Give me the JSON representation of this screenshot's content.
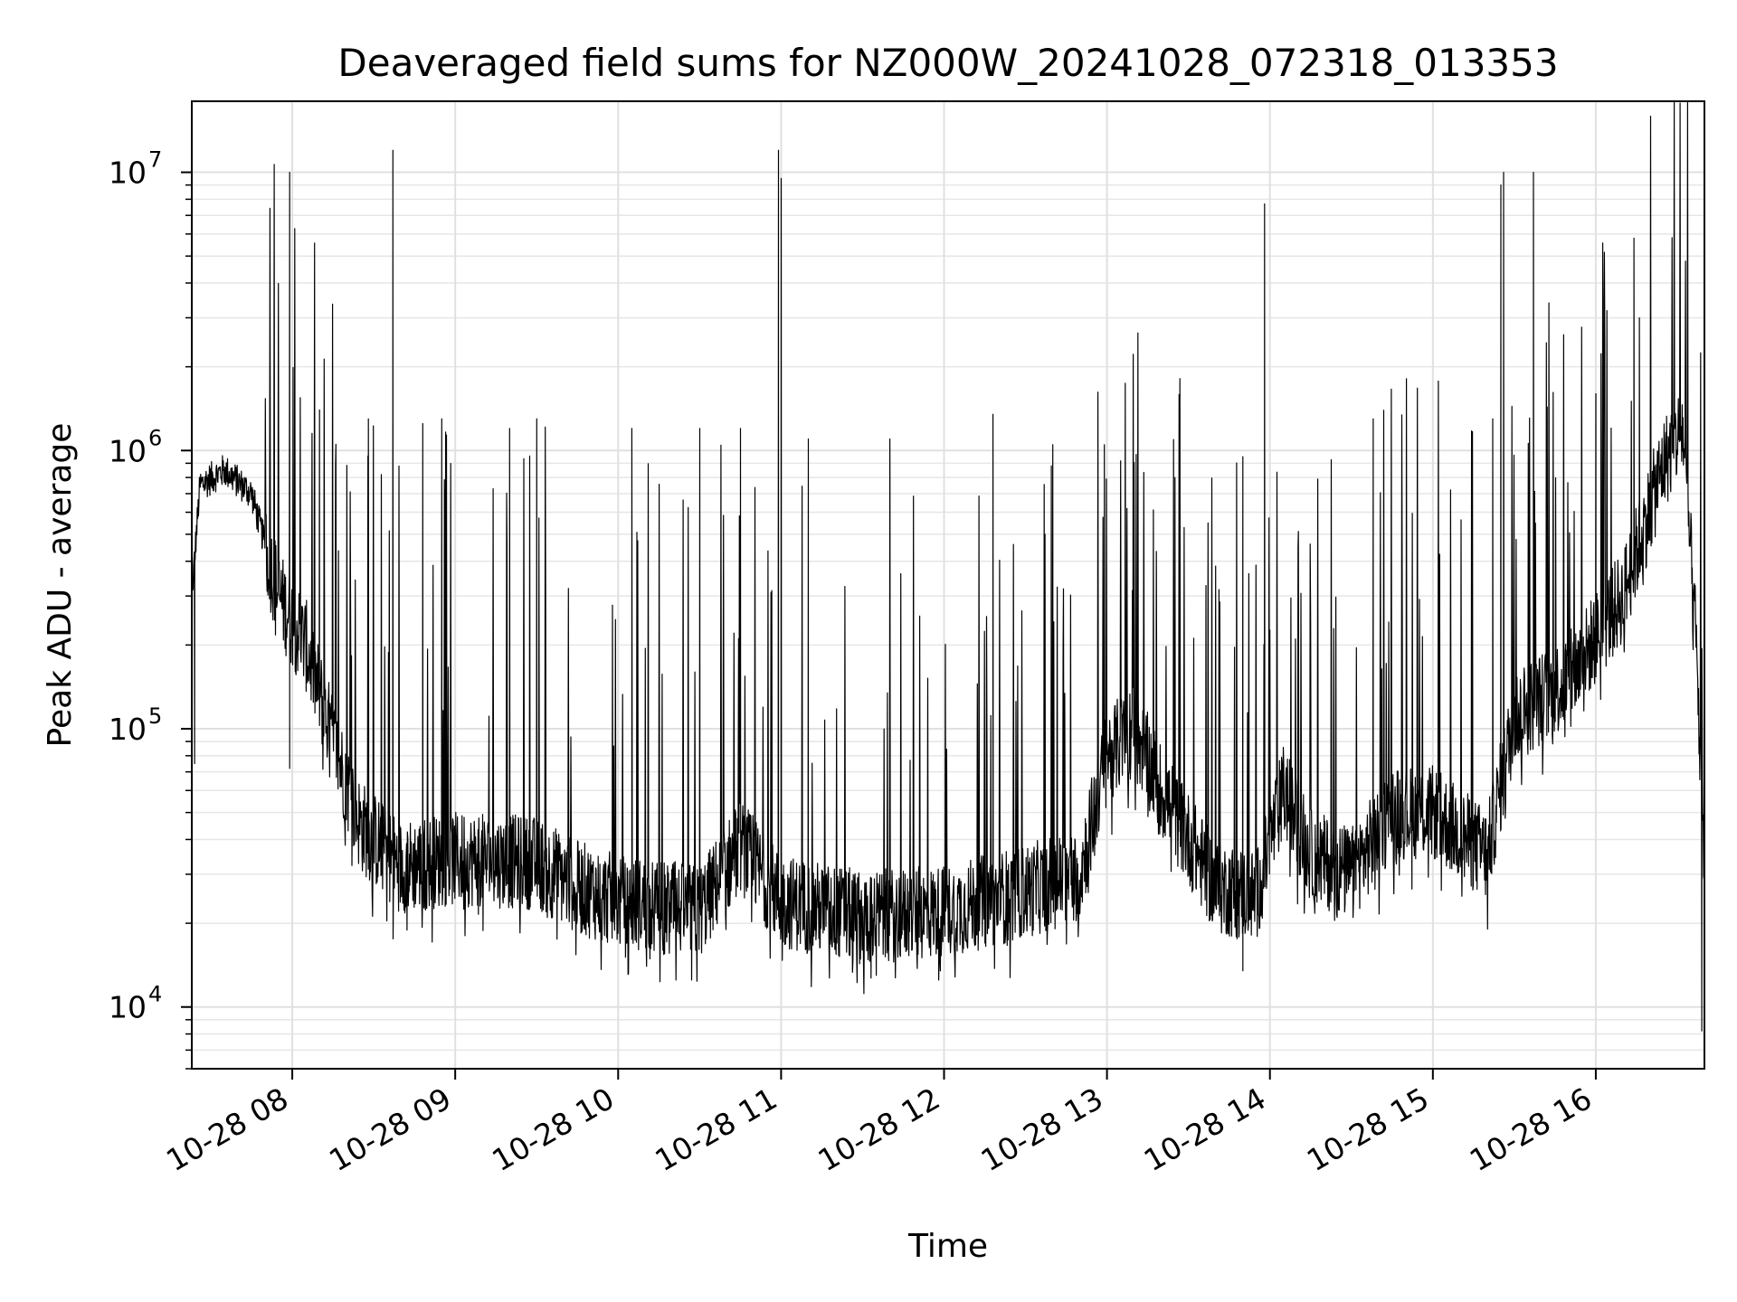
{
  "chart_data": {
    "type": "line",
    "title": "Deaveraged field sums for NZ000W_20241028_072318_013353",
    "xlabel": "Time",
    "ylabel": "Peak ADU - average",
    "yscale": "log",
    "xlim": [
      "2024-10-28 07:23",
      "2024-10-28 16:40"
    ],
    "ylim": [
      6000,
      18000000
    ],
    "grid": true,
    "line_color": "#000000",
    "x_ticks": [
      {
        "t": "2024-10-28 08:00",
        "label": "10-28 08"
      },
      {
        "t": "2024-10-28 09:00",
        "label": "10-28 09"
      },
      {
        "t": "2024-10-28 10:00",
        "label": "10-28 10"
      },
      {
        "t": "2024-10-28 11:00",
        "label": "10-28 11"
      },
      {
        "t": "2024-10-28 12:00",
        "label": "10-28 12"
      },
      {
        "t": "2024-10-28 13:00",
        "label": "10-28 13"
      },
      {
        "t": "2024-10-28 14:00",
        "label": "10-28 14"
      },
      {
        "t": "2024-10-28 15:00",
        "label": "10-28 15"
      },
      {
        "t": "2024-10-28 16:00",
        "label": "10-28 16"
      }
    ],
    "y_ticks": [
      {
        "value": 10000,
        "base": "10",
        "exp": "4"
      },
      {
        "value": 100000,
        "base": "10",
        "exp": "5"
      },
      {
        "value": 1000000,
        "base": "10",
        "exp": "6"
      },
      {
        "value": 10000000,
        "base": "10",
        "exp": "7"
      }
    ],
    "series": [
      {
        "baseline": [
          [
            "2024-10-28 07:23",
            300000
          ],
          [
            "2024-10-28 07:26",
            750000
          ],
          [
            "2024-10-28 07:35",
            850000
          ],
          [
            "2024-10-28 07:45",
            700000
          ],
          [
            "2024-10-28 07:55",
            300000
          ],
          [
            "2024-10-28 08:05",
            200000
          ],
          [
            "2024-10-28 08:15",
            90000
          ],
          [
            "2024-10-28 08:25",
            45000
          ],
          [
            "2024-10-28 08:40",
            32000
          ],
          [
            "2024-10-28 09:00",
            34000
          ],
          [
            "2024-10-28 09:30",
            33000
          ],
          [
            "2024-10-28 09:45",
            27000
          ],
          [
            "2024-10-28 10:00",
            24000
          ],
          [
            "2024-10-28 10:30",
            22000
          ],
          [
            "2024-10-28 10:45",
            38000
          ],
          [
            "2024-10-28 11:00",
            24000
          ],
          [
            "2024-10-28 11:30",
            21000
          ],
          [
            "2024-10-28 12:00",
            22000
          ],
          [
            "2024-10-28 12:30",
            26000
          ],
          [
            "2024-10-28 12:50",
            30000
          ],
          [
            "2024-10-28 13:00",
            80000
          ],
          [
            "2024-10-28 13:10",
            100000
          ],
          [
            "2024-10-28 13:20",
            60000
          ],
          [
            "2024-10-28 13:40",
            27000
          ],
          [
            "2024-10-28 13:55",
            25000
          ],
          [
            "2024-10-28 14:05",
            60000
          ],
          [
            "2024-10-28 14:15",
            35000
          ],
          [
            "2024-10-28 14:30",
            30000
          ],
          [
            "2024-10-28 14:45",
            50000
          ],
          [
            "2024-10-28 15:00",
            50000
          ],
          [
            "2024-10-28 15:20",
            35000
          ],
          [
            "2024-10-28 15:30",
            110000
          ],
          [
            "2024-10-28 15:50",
            150000
          ],
          [
            "2024-10-28 16:10",
            300000
          ],
          [
            "2024-10-28 16:25",
            900000
          ],
          [
            "2024-10-28 16:32",
            1200000
          ],
          [
            "2024-10-28 16:37",
            200000
          ],
          [
            "2024-10-28 16:40",
            30000
          ]
        ],
        "spikes": [
          [
            "2024-10-28 07:59",
            10000000
          ],
          [
            "2024-10-28 08:37",
            12000000
          ],
          [
            "2024-10-28 10:59",
            12000000
          ],
          [
            "2024-10-28 11:00",
            9500000
          ],
          [
            "2024-10-28 13:58",
            7700000
          ],
          [
            "2024-10-28 15:25",
            9000000
          ],
          [
            "2024-10-28 15:26",
            10000000
          ],
          [
            "2024-10-28 15:37",
            10000000
          ],
          [
            "2024-10-28 16:14",
            5800000
          ],
          [
            "2024-10-28 16:16",
            3000000
          ]
        ],
        "peaks": [
          [
            "2024-10-28 08:10",
            1400000
          ],
          [
            "2024-10-28 08:28",
            1300000
          ],
          [
            "2024-10-28 08:48",
            1250000
          ],
          [
            "2024-10-28 08:55",
            1300000
          ],
          [
            "2024-10-28 09:20",
            1200000
          ],
          [
            "2024-10-28 09:30",
            1300000
          ],
          [
            "2024-10-28 10:05",
            1200000
          ],
          [
            "2024-10-28 10:30",
            1200000
          ],
          [
            "2024-10-28 10:45",
            1200000
          ],
          [
            "2024-10-28 11:10",
            1100000
          ],
          [
            "2024-10-28 11:40",
            1100000
          ],
          [
            "2024-10-28 12:18",
            1350000
          ],
          [
            "2024-10-28 12:40",
            1050000
          ],
          [
            "2024-10-28 12:59",
            1050000
          ],
          [
            "2024-10-28 13:25",
            800000
          ],
          [
            "2024-10-28 13:50",
            950000
          ],
          [
            "2024-10-28 14:38",
            1300000
          ],
          [
            "2024-10-28 15:22",
            1300000
          ],
          [
            "2024-10-28 16:00",
            1600000
          ]
        ],
        "drops": [
          [
            "2024-10-28 07:24",
            75000
          ],
          [
            "2024-10-28 07:59",
            72000
          ],
          [
            "2024-10-28 10:27",
            12500
          ],
          [
            "2024-10-28 11:35",
            13000
          ],
          [
            "2024-10-28 11:58",
            12500
          ],
          [
            "2024-10-28 13:50",
            13500
          ],
          [
            "2024-10-28 16:39",
            8200
          ]
        ]
      }
    ]
  }
}
